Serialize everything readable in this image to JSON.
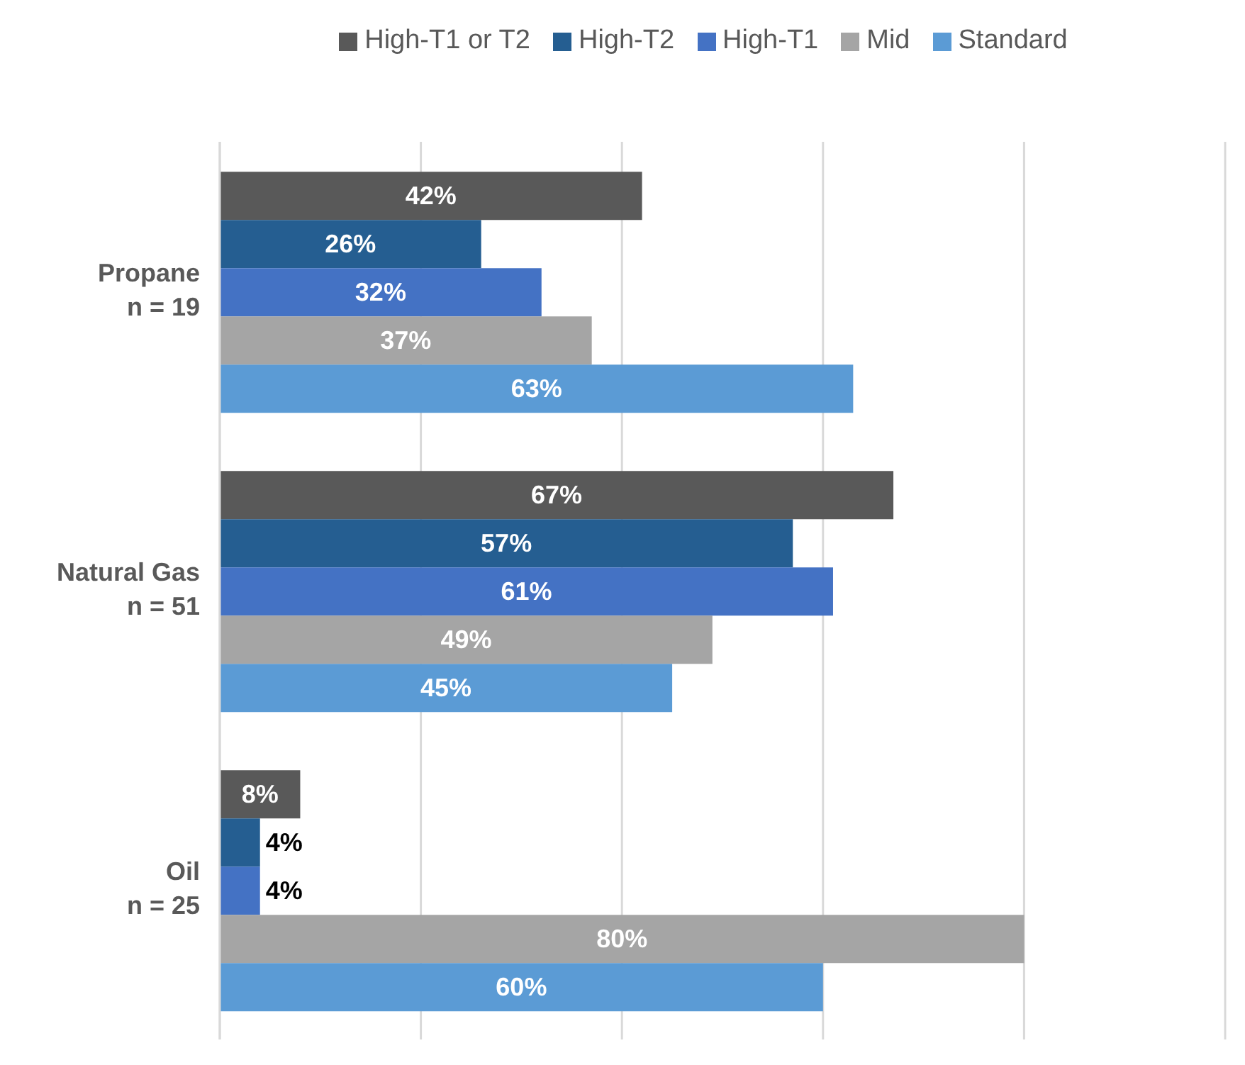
{
  "chart_data": {
    "type": "bar",
    "orientation": "horizontal",
    "categories": [
      "Propane\nn = 19",
      "Natural Gas\nn = 51",
      "Oil\nn = 25"
    ],
    "series": [
      {
        "name": "High-T1 or T2",
        "color": "#595959",
        "values": [
          42,
          67,
          8
        ],
        "value_labels": [
          "42%",
          "67%",
          "8%"
        ]
      },
      {
        "name": "High-T2",
        "color": "#255e91",
        "values": [
          26,
          57,
          4
        ],
        "value_labels": [
          "26%",
          "57%",
          "4%"
        ]
      },
      {
        "name": "High-T1",
        "color": "#4472c4",
        "values": [
          32,
          61,
          4
        ],
        "value_labels": [
          "32%",
          "61%",
          "4%"
        ]
      },
      {
        "name": "Mid",
        "color": "#a5a5a5",
        "values": [
          37,
          49,
          80
        ],
        "value_labels": [
          "37%",
          "49%",
          "80%"
        ]
      },
      {
        "name": "Standard",
        "color": "#5b9bd5",
        "values": [
          63,
          45,
          60
        ],
        "value_labels": [
          "63%",
          "45%",
          "60%"
        ]
      }
    ],
    "xlim": [
      0,
      100
    ],
    "xticks": [
      {
        "value": 0,
        "label": null
      },
      {
        "value": 20,
        "label": null
      },
      {
        "value": 40,
        "label": null
      },
      {
        "value": 60,
        "label": null
      },
      {
        "value": 80,
        "label": null
      },
      {
        "value": 100,
        "label": null
      }
    ],
    "tick_labels": "y",
    "grid": "x",
    "legend": "top"
  }
}
